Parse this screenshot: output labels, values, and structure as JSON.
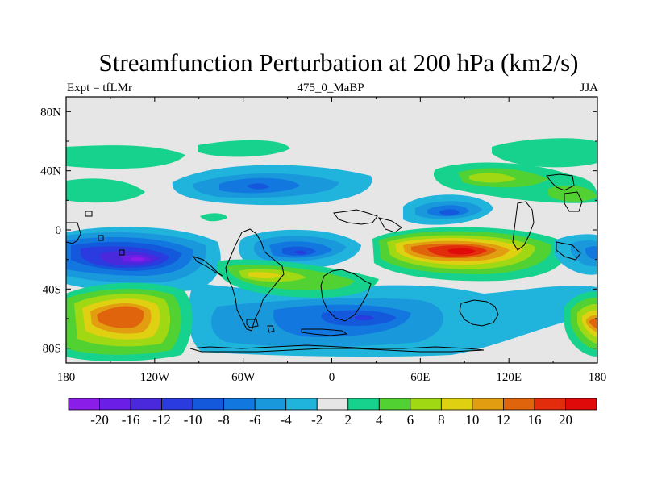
{
  "chart_data": {
    "type": "heatmap",
    "title": "Streamfunction Perturbation at 200 hPa (km2/s)",
    "subtitle_left": "Expt = tfLMr",
    "subtitle_center": "475_0_MaBP",
    "subtitle_right": "JJA",
    "x_tick_labels": [
      "180",
      "120W",
      "60W",
      "0",
      "60E",
      "120E",
      "180"
    ],
    "x_tick_values": [
      -180,
      -120,
      -60,
      0,
      60,
      120,
      180
    ],
    "y_tick_labels": [
      "80N",
      "40N",
      "0",
      "40S",
      "80S"
    ],
    "y_tick_values": [
      80,
      40,
      0,
      -40,
      -80
    ],
    "xlim": [
      -180,
      180
    ],
    "ylim": [
      -90,
      90
    ],
    "colorbar": {
      "levels": [
        "-20",
        "-16",
        "-12",
        "-10",
        "-8",
        "-6",
        "-4",
        "-2",
        "2",
        "4",
        "6",
        "8",
        "10",
        "12",
        "16",
        "20"
      ],
      "colors": [
        "#8a1ee8",
        "#6a1ee6",
        "#4a28dc",
        "#2a3ce0",
        "#1458dc",
        "#1278e0",
        "#1a98dc",
        "#20b4dc",
        "#e6e6e6",
        "#16d28c",
        "#52d232",
        "#a0d814",
        "#e0d012",
        "#e29e10",
        "#e0640c",
        "#e22c0c",
        "#e00a0a"
      ]
    },
    "features": [
      {
        "name": "neg-max-south-pacific",
        "center_lon": -128,
        "center_lat": -20,
        "peak": -20
      },
      {
        "name": "pos-max-south-pacific",
        "center_lon": -122,
        "center_lat": -55,
        "peak": 12
      },
      {
        "name": "neg-north-atlantic",
        "center_lon": -40,
        "center_lat": 30,
        "peak": -8
      },
      {
        "name": "neg-tropical-atlantic",
        "center_lon": -20,
        "center_lat": -17,
        "peak": -10
      },
      {
        "name": "neg-southern-band",
        "center_lon": 20,
        "center_lat": -60,
        "peak": -10
      },
      {
        "name": "pos-max-indian-ocean",
        "center_lon": 90,
        "center_lat": -17,
        "peak": 20
      },
      {
        "name": "neg-north-indian",
        "center_lon": 80,
        "center_lat": 12,
        "peak": -12
      },
      {
        "name": "pos-central-asia",
        "center_lon": 103,
        "center_lat": 35,
        "peak": 6
      },
      {
        "name": "pos-southeast-pacific",
        "center_lon": -140,
        "center_lat": -70,
        "peak": 8
      },
      {
        "name": "pos-southwest-pacific",
        "center_lon": 175,
        "center_lat": -65,
        "peak": 20
      }
    ]
  }
}
